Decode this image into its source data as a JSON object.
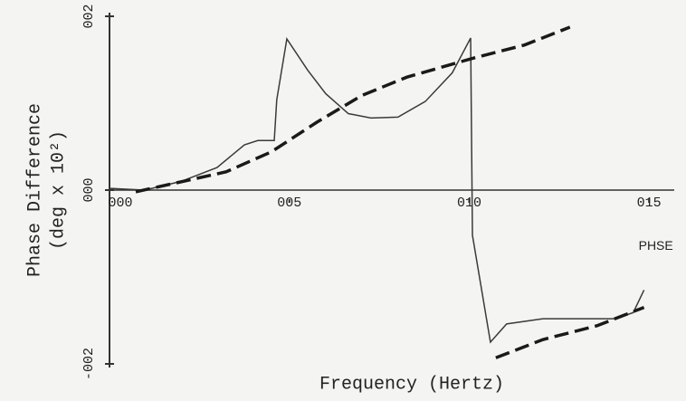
{
  "chart_data": {
    "type": "line",
    "y_label": [
      "Phase Difference",
      "(deg x 10²)"
    ],
    "x_label": "Frequency (Hertz)",
    "xlim": [
      0,
      0.157
    ],
    "ylim": [
      -2,
      2
    ],
    "xticks": [
      {
        "value": 0,
        "label": "000"
      },
      {
        "value": 0.05,
        "label": "005"
      },
      {
        "value": 0.1,
        "label": "010"
      },
      {
        "value": 0.15,
        "label": "015"
      }
    ],
    "yticks": [
      {
        "value": -2,
        "label": "-002"
      },
      {
        "value": 0,
        "label": "000"
      },
      {
        "value": 2,
        "label": "002"
      }
    ],
    "series": [
      {
        "name": "PHSE",
        "color": "#3a3a3a",
        "style": "solid",
        "x": [
          0,
          0.0098,
          0.0199,
          0.0299,
          0.0375,
          0.0412,
          0.0458,
          0.0465,
          0.0493,
          0.0551,
          0.0601,
          0.0664,
          0.0727,
          0.0802,
          0.0878,
          0.0953,
          0.1004,
          0.1009,
          0.1059,
          0.1104,
          0.1205,
          0.133,
          0.1406,
          0.1456,
          0.1486
        ],
        "values": [
          0.02,
          0,
          0.1,
          0.26,
          0.52,
          0.57,
          0.57,
          1.04,
          1.74,
          1.38,
          1.11,
          0.88,
          0.83,
          0.84,
          1.02,
          1.35,
          1.75,
          -0.52,
          -1.75,
          -1.54,
          -1.48,
          -1.48,
          -1.48,
          -1.41,
          -1.15
        ]
      },
      {
        "color": "#1a1a1a",
        "style": "dashed",
        "x": [
          0.0073,
          0.0324,
          0.045,
          0.0576,
          0.0702,
          0.0827,
          0.1004,
          0.1154,
          0.128,
          null,
          0.1074,
          0.1205,
          0.1356,
          0.1486
        ],
        "values": [
          -0.02,
          0.21,
          0.44,
          0.78,
          1.09,
          1.3,
          1.51,
          1.67,
          1.875,
          null,
          -1.93,
          -1.72,
          -1.56,
          -1.35
        ]
      }
    ]
  }
}
